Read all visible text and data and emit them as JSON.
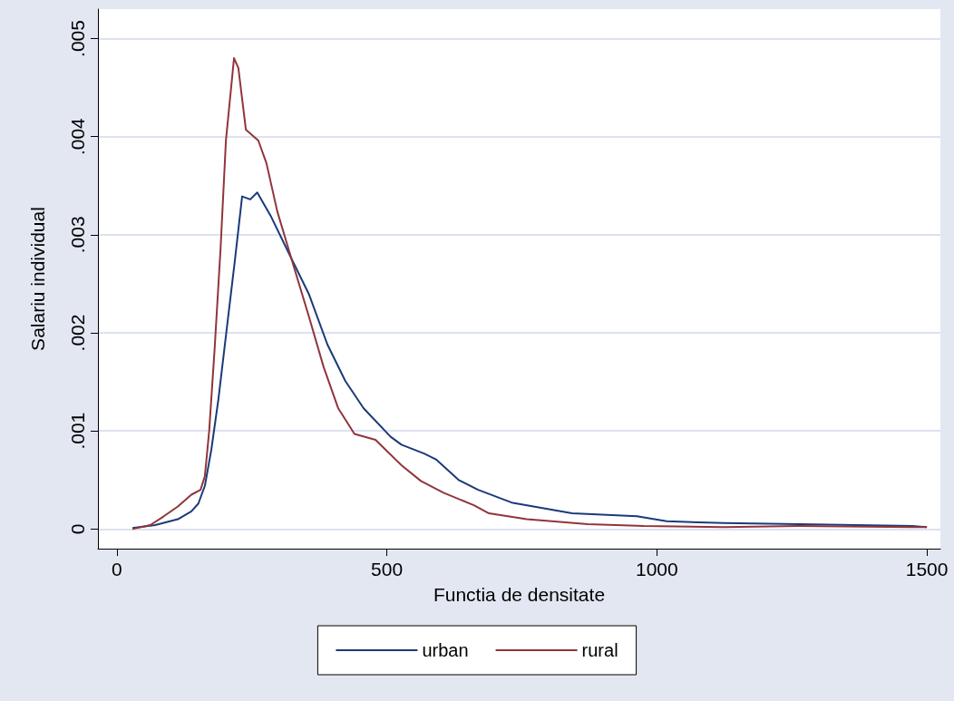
{
  "chart_data": {
    "type": "line",
    "xlabel": "Functia de densitate",
    "ylabel": "Salariu individual",
    "xlim": [
      -35,
      1525
    ],
    "ylim": [
      -0.0002,
      0.0053
    ],
    "xticks": [
      0,
      500,
      1000,
      1500
    ],
    "yticks": [
      0,
      {
        "value": 0.001,
        "label": ".001"
      },
      {
        "value": 0.002,
        "label": ".002"
      },
      {
        "value": 0.003,
        "label": ".003"
      },
      {
        "value": 0.004,
        "label": ".004"
      },
      {
        "value": 0.005,
        "label": ".005"
      }
    ],
    "grid": "y",
    "legend": "bottom",
    "marker": "none",
    "line_style": "solid",
    "series": [
      {
        "name": "urban",
        "color": "#1a3a7a",
        "x": [
          29,
          71,
          113,
          138,
          151,
          163,
          175,
          188,
          205,
          218,
          232,
          247,
          260,
          286,
          323,
          356,
          390,
          423,
          457,
          507,
          527,
          569,
          591,
          633,
          669,
          731,
          843,
          963,
          1018,
          1124,
          1263,
          1473,
          1500
        ],
        "values": [
          1e-05,
          4e-05,
          0.0001,
          0.00018,
          0.00026,
          0.00044,
          0.00081,
          0.00132,
          0.00211,
          0.00271,
          0.00339,
          0.00336,
          0.00343,
          0.00318,
          0.00276,
          0.00239,
          0.00188,
          0.00151,
          0.00123,
          0.00094,
          0.00086,
          0.00077,
          0.00071,
          0.0005,
          0.0004,
          0.00027,
          0.00016,
          0.00013,
          8e-05,
          6e-05,
          5e-05,
          3e-05,
          2e-05
        ]
      },
      {
        "name": "rural",
        "color": "#90353b",
        "x": [
          29,
          62,
          87,
          113,
          138,
          155,
          163,
          171,
          181,
          192,
          202,
          217,
          225,
          239,
          262,
          277,
          297,
          323,
          356,
          383,
          410,
          440,
          479,
          527,
          563,
          605,
          662,
          689,
          759,
          872,
          976,
          1124,
          1263,
          1473,
          1500
        ],
        "values": [
          0,
          4e-05,
          0.00013,
          0.00023,
          0.00035,
          0.0004,
          0.00054,
          0.001,
          0.00183,
          0.00285,
          0.00396,
          0.0048,
          0.0047,
          0.00407,
          0.00396,
          0.00373,
          0.00324,
          0.00276,
          0.00216,
          0.00165,
          0.00123,
          0.00097,
          0.00091,
          0.00065,
          0.00049,
          0.00037,
          0.00024,
          0.00016,
          0.0001,
          5e-05,
          3e-05,
          2e-05,
          3e-05,
          2e-05,
          2e-05
        ]
      }
    ]
  }
}
